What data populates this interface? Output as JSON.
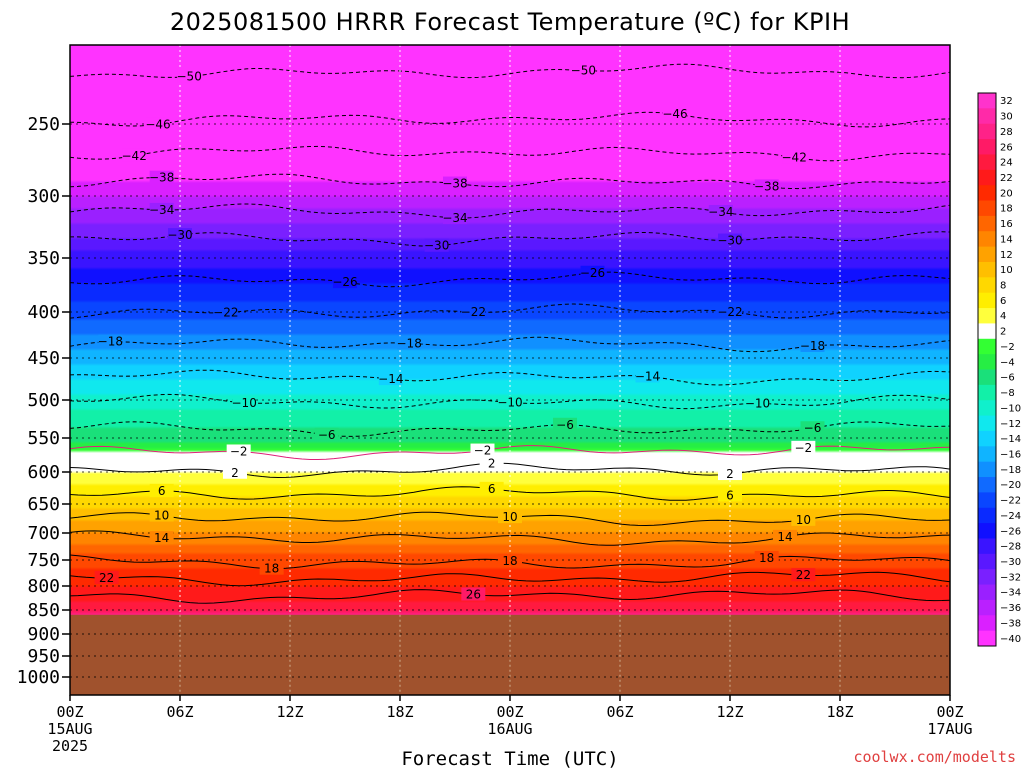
{
  "chart_data": {
    "type": "heatmap",
    "title": "2025081500 HRRR Forecast Temperature (ºC) for KPIH",
    "xlabel": "Forecast Time (UTC)",
    "ylabel": "",
    "credit": "coolwx.com/modelts",
    "y_axis": {
      "scale": "pressure",
      "range_hpa": [
        1050,
        200
      ],
      "ticks": [
        "250",
        "300",
        "350",
        "400",
        "450",
        "500",
        "550",
        "600",
        "650",
        "700",
        "750",
        "800",
        "850",
        "900",
        "950",
        "1000"
      ]
    },
    "x_axis": {
      "range_hours": [
        0,
        48
      ],
      "ticks": [
        {
          "line1": "00Z",
          "line2": "15AUG",
          "line3": "2025"
        },
        {
          "line1": "06Z",
          "line2": "",
          "line3": ""
        },
        {
          "line1": "12Z",
          "line2": "",
          "line3": ""
        },
        {
          "line1": "18Z",
          "line2": "",
          "line3": ""
        },
        {
          "line1": "00Z",
          "line2": "16AUG",
          "line3": ""
        },
        {
          "line1": "06Z",
          "line2": "",
          "line3": ""
        },
        {
          "line1": "12Z",
          "line2": "",
          "line3": ""
        },
        {
          "line1": "18Z",
          "line2": "",
          "line3": ""
        },
        {
          "line1": "00Z",
          "line2": "17AUG",
          "line3": ""
        }
      ]
    },
    "grid": true,
    "surface_pressure_hpa": 860,
    "surface_color": "#a0522d",
    "colorbar": {
      "position": "right",
      "labels": [
        "32",
        "30",
        "28",
        "26",
        "24",
        "22",
        "20",
        "18",
        "16",
        "14",
        "12",
        "10",
        "8",
        "6",
        "4",
        "2",
        "−2",
        "−4",
        "−6",
        "−8",
        "−10",
        "−12",
        "−14",
        "−16",
        "−18",
        "−20",
        "−22",
        "−24",
        "−26",
        "−28",
        "−30",
        "−32",
        "−34",
        "−36",
        "−38",
        "−40"
      ],
      "colors": [
        "#ff33cc",
        "#ff2aa8",
        "#ff2288",
        "#ff1a66",
        "#ff1a3f",
        "#ff1a1a",
        "#ff2a00",
        "#ff4800",
        "#ff6600",
        "#ff8500",
        "#ffa200",
        "#ffbf00",
        "#ffd800",
        "#ffee00",
        "#ffff3c",
        "#ffffff",
        "#33ff33",
        "#26ee44",
        "#1ae07a",
        "#12f0a8",
        "#10f0cc",
        "#10e8ee",
        "#10d2ff",
        "#10b4ff",
        "#1090ff",
        "#106aff",
        "#0a46ff",
        "#0a2aff",
        "#1010ff",
        "#3a14ff",
        "#5a18ff",
        "#7a20ff",
        "#9a20ff",
        "#ba20ff",
        "#da20ff",
        "#ff33ff"
      ]
    },
    "temperature_profile": {
      "pressure_hpa": [
        860,
        850,
        800,
        750,
        700,
        650,
        600,
        580,
        550,
        500,
        450,
        400,
        350,
        300,
        250,
        215
      ],
      "temp_c": [
        27,
        24,
        21,
        18,
        13,
        8,
        3,
        0,
        -6,
        -10,
        -16,
        -22,
        -28,
        -37,
        -46,
        -52
      ]
    },
    "contours": [
      {
        "value": -50,
        "p_hpa": 227,
        "labels": [
          {
            "h": 6.5
          },
          {
            "h": 28
          }
        ]
      },
      {
        "value": -46,
        "p_hpa": 248,
        "labels": [
          {
            "h": 4.8
          },
          {
            "h": 33
          }
        ]
      },
      {
        "value": -42,
        "p_hpa": 270,
        "labels": [
          {
            "h": 3.5
          },
          {
            "h": 39.5
          }
        ]
      },
      {
        "value": -38,
        "p_hpa": 290,
        "labels": [
          {
            "h": 5
          },
          {
            "h": 21
          },
          {
            "h": 38
          }
        ]
      },
      {
        "value": -34,
        "p_hpa": 312,
        "labels": [
          {
            "h": 5
          },
          {
            "h": 21
          },
          {
            "h": 35.5
          }
        ]
      },
      {
        "value": -30,
        "p_hpa": 334,
        "labels": [
          {
            "h": 6
          },
          {
            "h": 20
          },
          {
            "h": 36
          }
        ]
      },
      {
        "value": -26,
        "p_hpa": 370,
        "labels": [
          {
            "h": 15
          },
          {
            "h": 28.5
          }
        ]
      },
      {
        "value": -22,
        "p_hpa": 400,
        "labels": [
          {
            "h": 8.5
          },
          {
            "h": 22
          },
          {
            "h": 36
          }
        ]
      },
      {
        "value": -18,
        "p_hpa": 435,
        "labels": [
          {
            "h": 2.2
          },
          {
            "h": 18.5
          },
          {
            "h": 40.5
          }
        ]
      },
      {
        "value": -14,
        "p_hpa": 473,
        "labels": [
          {
            "h": 17.5
          },
          {
            "h": 31.5
          }
        ]
      },
      {
        "value": -10,
        "p_hpa": 503,
        "labels": [
          {
            "h": 9.5
          },
          {
            "h": 24
          },
          {
            "h": 37.5
          }
        ]
      },
      {
        "value": -6,
        "p_hpa": 538,
        "labels": [
          {
            "h": 14
          },
          {
            "h": 27
          },
          {
            "h": 40.5
          }
        ]
      },
      {
        "value": -2,
        "p_hpa": 570,
        "labels": [
          {
            "h": 9.2
          },
          {
            "h": 22.5
          },
          {
            "h": 40
          }
        ]
      },
      {
        "value": 2,
        "p_hpa": 598,
        "labels": [
          {
            "h": 9
          },
          {
            "h": 23
          },
          {
            "h": 36
          }
        ]
      },
      {
        "value": 6,
        "p_hpa": 635,
        "labels": [
          {
            "h": 5
          },
          {
            "h": 23
          },
          {
            "h": 36
          }
        ]
      },
      {
        "value": 10,
        "p_hpa": 675,
        "labels": [
          {
            "h": 5
          },
          {
            "h": 24
          },
          {
            "h": 40
          }
        ]
      },
      {
        "value": 14,
        "p_hpa": 710,
        "labels": [
          {
            "h": 5
          },
          {
            "h": 39
          }
        ]
      },
      {
        "value": 18,
        "p_hpa": 755,
        "labels": [
          {
            "h": 11
          },
          {
            "h": 24
          },
          {
            "h": 38
          }
        ]
      },
      {
        "value": 22,
        "p_hpa": 785,
        "labels": [
          {
            "h": 2
          },
          {
            "h": 40
          }
        ]
      },
      {
        "value": 26,
        "p_hpa": 820,
        "labels": [
          {
            "h": 22
          }
        ]
      }
    ]
  }
}
